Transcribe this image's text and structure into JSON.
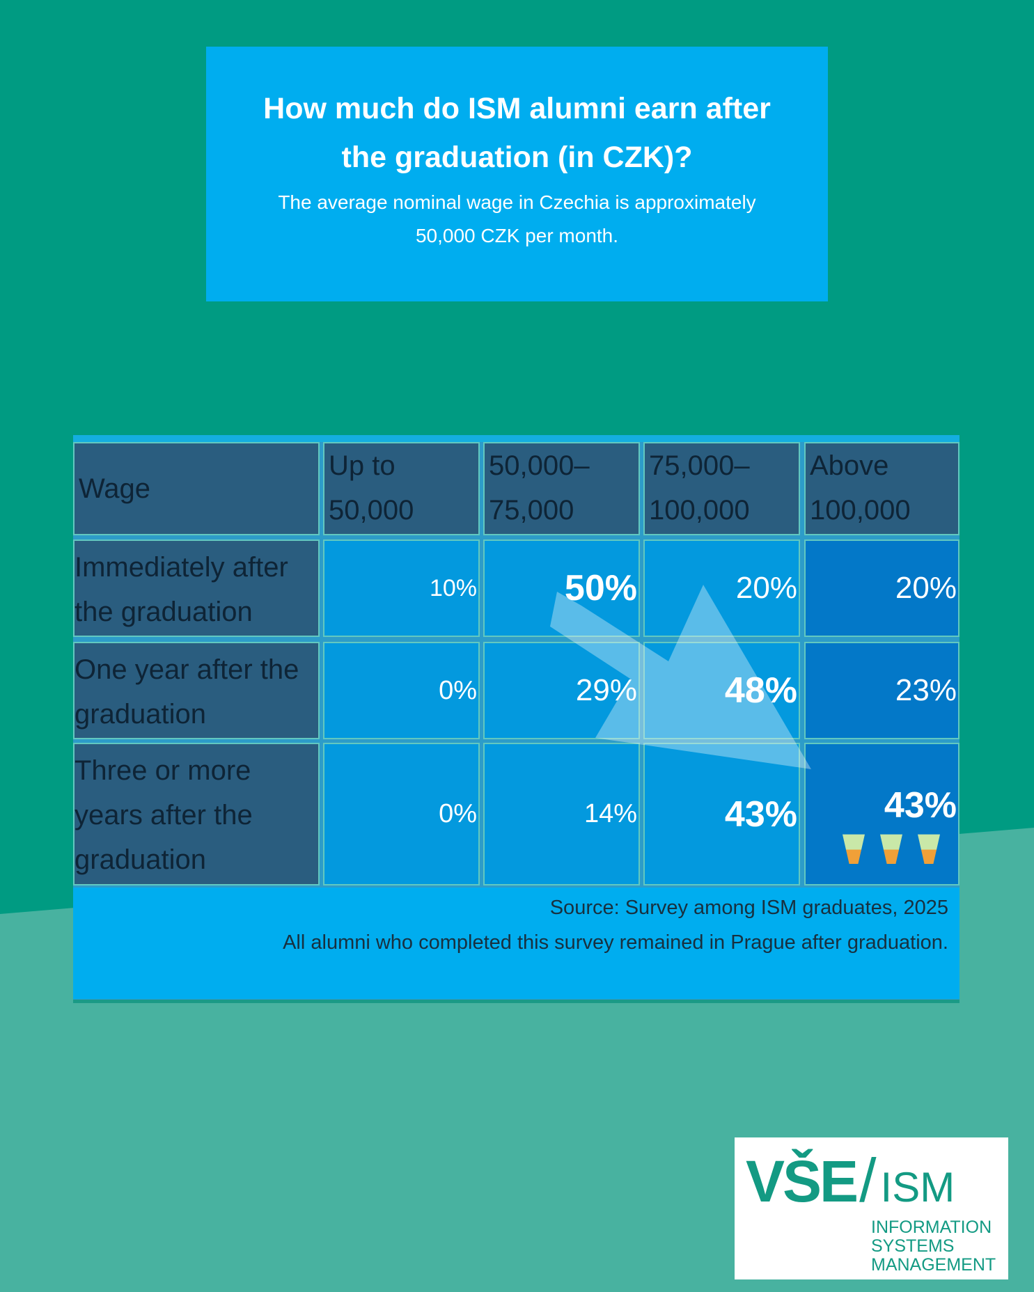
{
  "colors": {
    "background_dark": "#009b82",
    "background_light": "#48b2a0",
    "title_box": "#00adef",
    "header": "#2a5d7f",
    "cell": "#0399de",
    "highlight_cell": "#0378c8"
  },
  "header": {
    "title": "How much do ISM alumni earn after  the graduation (in CZK)?",
    "subtitle": "The average nominal wage in Czechia is approximately 50,000 CZK per month."
  },
  "table": {
    "corner": "Wage",
    "columns": [
      "Up to 50,000",
      "50,000–75,000",
      "75,000–100,000",
      "Above 100,000"
    ],
    "rows": [
      {
        "label": "Immediately after the graduation",
        "values": [
          "10%",
          "50%",
          "20%",
          "20%"
        ]
      },
      {
        "label": "One year after the graduation",
        "values": [
          "0%",
          "29%",
          "48%",
          "23%"
        ]
      },
      {
        "label": "Three or more years after the graduation",
        "values": [
          "0%",
          "14%",
          "43%",
          "43%"
        ]
      }
    ],
    "icons": [
      "cocktail-icon",
      "cocktail-icon",
      "cocktail-icon"
    ]
  },
  "footer": {
    "source": "Source: Survey among ISM graduates, 2025",
    "note": "All alumni who completed this survey remained in Prague after graduation."
  },
  "logo": {
    "mark": "VŠE",
    "slash": "/",
    "abbr": "ISM",
    "line1": "INFORMATION",
    "line2": "SYSTEMS",
    "line3": "MANAGEMENT"
  }
}
